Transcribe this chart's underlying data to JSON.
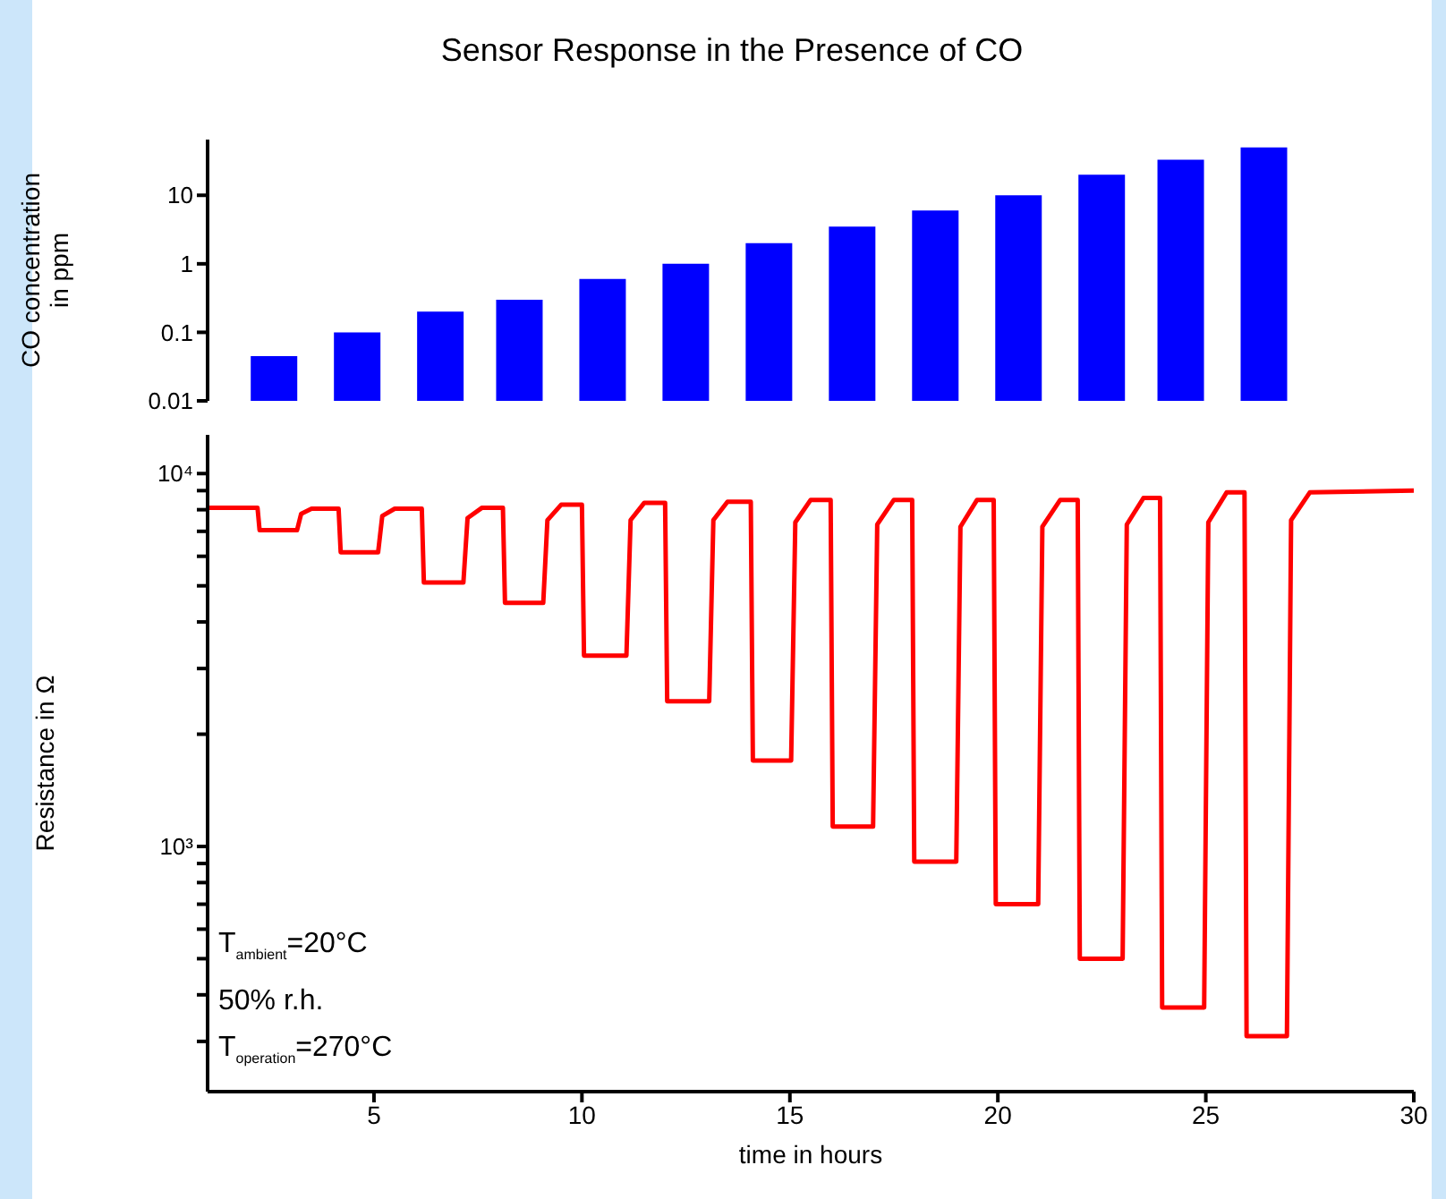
{
  "chart_data": [
    {
      "type": "bar",
      "title": "Sensor Response in the Presence of CO",
      "ylabel": "CO concentration in ppm",
      "x": [
        2.6,
        4.6,
        6.6,
        8.5,
        10.5,
        12.5,
        14.5,
        16.5,
        18.5,
        20.5,
        22.5,
        24.4,
        26.4
      ],
      "series": [
        {
          "color": "#0000ff",
          "values": [
            0.045,
            0.1,
            0.2,
            0.3,
            0.6,
            1,
            2,
            3.5,
            6,
            10,
            20,
            33,
            50
          ]
        }
      ],
      "xlim": [
        1,
        30
      ],
      "ylim": [
        0.01,
        65
      ],
      "yticks": [
        0.01,
        0.1,
        1,
        10
      ],
      "log": "y",
      "tick_labels": "y"
    },
    {
      "type": "line",
      "xlabel": "time in hours",
      "ylabel": "Resistance in Ω",
      "xlim": [
        1,
        30
      ],
      "xticks": [
        5,
        10,
        15,
        20,
        25,
        30
      ],
      "ylim": [
        220,
        12700
      ],
      "log": "y",
      "line_style": "solid",
      "yticks": [
        {
          "value": 300,
          "label": null
        },
        {
          "value": 400,
          "label": null
        },
        {
          "value": 500,
          "label": null
        },
        {
          "value": 600,
          "label": null
        },
        {
          "value": 700,
          "label": null
        },
        {
          "value": 800,
          "label": null
        },
        {
          "value": 900,
          "label": null
        },
        {
          "value": 1000,
          "label": "10³"
        },
        {
          "value": 2000,
          "label": null
        },
        {
          "value": 3000,
          "label": null
        },
        {
          "value": 4000,
          "label": null
        },
        {
          "value": 5000,
          "label": null
        },
        {
          "value": 6000,
          "label": null
        },
        {
          "value": 7000,
          "label": null
        },
        {
          "value": 8000,
          "label": null
        },
        {
          "value": 9000,
          "label": null
        },
        {
          "value": 10000,
          "label": "10⁴"
        }
      ],
      "annotations": [
        "T$_{ambient}$=20°C",
        "50% r.h.",
        "T$_{operation}$=270°C"
      ],
      "series": [
        {
          "color": "#ff0000",
          "x": [
            1,
            2.2,
            2.25,
            3.15,
            3.25,
            3.5,
            4.15,
            4.2,
            5.1,
            5.2,
            5.5,
            6.15,
            6.2,
            7.15,
            7.25,
            7.6,
            8.1,
            8.15,
            9.07,
            9.17,
            9.5,
            10.0,
            10.05,
            11.07,
            11.17,
            11.5,
            12.0,
            12.05,
            13.06,
            13.16,
            13.5,
            14.06,
            14.11,
            15.03,
            15.13,
            15.5,
            15.98,
            16.03,
            17.0,
            17.1,
            17.5,
            17.94,
            17.99,
            19.0,
            19.1,
            19.5,
            19.9,
            19.95,
            20.97,
            21.07,
            21.5,
            21.92,
            21.97,
            23.0,
            23.1,
            23.5,
            23.9,
            23.95,
            24.96,
            25.06,
            25.5,
            25.93,
            25.98,
            26.95,
            27.05,
            27.5,
            30
          ],
          "values": [
            8100,
            8100,
            7050,
            7050,
            7800,
            8050,
            8050,
            6150,
            6150,
            7700,
            8050,
            8050,
            5100,
            5100,
            7600,
            8100,
            8100,
            4500,
            4500,
            7500,
            8250,
            8250,
            3250,
            3250,
            7500,
            8350,
            8350,
            2450,
            2450,
            7500,
            8400,
            8400,
            1700,
            1700,
            7400,
            8500,
            8500,
            1130,
            1130,
            7300,
            8500,
            8500,
            910,
            910,
            7200,
            8500,
            8500,
            700,
            700,
            7200,
            8500,
            8500,
            500,
            500,
            7300,
            8600,
            8600,
            370,
            370,
            7400,
            8900,
            8900,
            310,
            310,
            7500,
            8900,
            9000
          ]
        }
      ]
    }
  ]
}
